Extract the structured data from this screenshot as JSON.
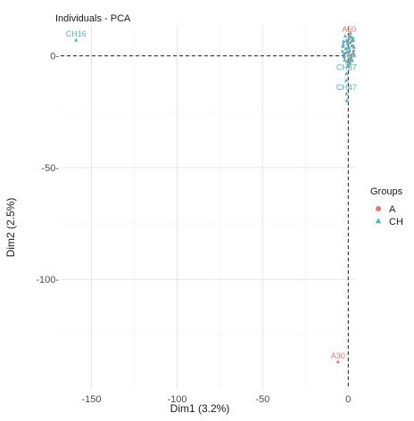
{
  "chart_data": {
    "type": "scatter",
    "title": "Individuals - PCA",
    "xlabel": "Dim1 (3.2%)",
    "ylabel": "Dim2 (2.5%)",
    "xlim": [
      -168,
      4
    ],
    "ylim": [
      -149,
      13
    ],
    "x_ticks": [
      -150,
      -100,
      -50,
      0
    ],
    "y_ticks": [
      -100,
      -50,
      0
    ],
    "x_tick_labels": [
      "-150",
      "-100",
      "-50",
      "0"
    ],
    "y_tick_labels": [
      "-100-",
      "-50-",
      "0-"
    ],
    "grid": true,
    "reference_lines": {
      "x": 0,
      "y": 0
    },
    "legend": {
      "title": "Groups",
      "position": "right",
      "entries": [
        {
          "label": "A",
          "shape": "circle",
          "color": "#e8766d"
        },
        {
          "label": "CH",
          "shape": "triangle",
          "color": "#4fb5c2"
        }
      ]
    },
    "series": [
      {
        "name": "A",
        "color": "#e8766d",
        "shape": "circle",
        "points": [
          {
            "x": 0.5,
            "y": 9,
            "label": "A50"
          },
          {
            "x": -6,
            "y": -137,
            "label": "A30"
          },
          {
            "x": 0.4,
            "y": 1.5
          },
          {
            "x": 1.4,
            "y": -1.4
          },
          {
            "x": -1.1,
            "y": 3.2
          },
          {
            "x": 2.6,
            "y": 4.6
          },
          {
            "x": -2.3,
            "y": -0.7
          },
          {
            "x": 0.9,
            "y": -2.6
          },
          {
            "x": 3.1,
            "y": 2.2
          },
          {
            "x": -0.4,
            "y": 6.1
          },
          {
            "x": 1.9,
            "y": 0.4
          },
          {
            "x": -1.7,
            "y": 1.1
          },
          {
            "x": 0.2,
            "y": -4.8
          },
          {
            "x": 2.2,
            "y": 6.6
          }
        ]
      },
      {
        "name": "CH",
        "color": "#4fb5c2",
        "shape": "triangle",
        "points": [
          {
            "x": -159,
            "y": 7,
            "label": "CH16"
          },
          {
            "x": -1,
            "y": -8,
            "label": "CH37"
          },
          {
            "x": -1,
            "y": -17,
            "label": "CH47"
          },
          {
            "x": -1.2,
            "y": -11
          },
          {
            "x": -0.9,
            "y": -20
          },
          {
            "x": -2.6,
            "y": 0.8
          },
          {
            "x": -1.4,
            "y": 3.1
          },
          {
            "x": -0.3,
            "y": 5.2
          },
          {
            "x": 0.8,
            "y": 2.4
          },
          {
            "x": 1.8,
            "y": -0.6
          },
          {
            "x": -2.1,
            "y": -1.9
          },
          {
            "x": 2.9,
            "y": 1.3
          },
          {
            "x": 0.3,
            "y": 7.7
          },
          {
            "x": -3.1,
            "y": 4.2
          },
          {
            "x": 1.1,
            "y": 5.9
          },
          {
            "x": 3.4,
            "y": 3.8
          },
          {
            "x": -0.7,
            "y": -2.7
          },
          {
            "x": 2.4,
            "y": -2.2
          },
          {
            "x": -2.8,
            "y": 6.4
          },
          {
            "x": 0.1,
            "y": 0.2
          },
          {
            "x": 1.5,
            "y": 8.4
          },
          {
            "x": -1.8,
            "y": 8.8
          },
          {
            "x": 3.0,
            "y": 6.8
          },
          {
            "x": -3.4,
            "y": 2.0
          },
          {
            "x": 0.6,
            "y": -1.2
          },
          {
            "x": -0.8,
            "y": 1.7
          },
          {
            "x": 2.1,
            "y": 4.4
          },
          {
            "x": -2.4,
            "y": -0.2
          },
          {
            "x": 1.3,
            "y": 10.2
          },
          {
            "x": -1.1,
            "y": 6.8
          },
          {
            "x": 3.6,
            "y": 0.1
          },
          {
            "x": 0.4,
            "y": 3.6
          },
          {
            "x": -0.2,
            "y": -4.1
          },
          {
            "x": 2.7,
            "y": 7.9
          },
          {
            "x": -2.9,
            "y": 5.1
          },
          {
            "x": 1.0,
            "y": -3.3
          }
        ]
      }
    ]
  }
}
